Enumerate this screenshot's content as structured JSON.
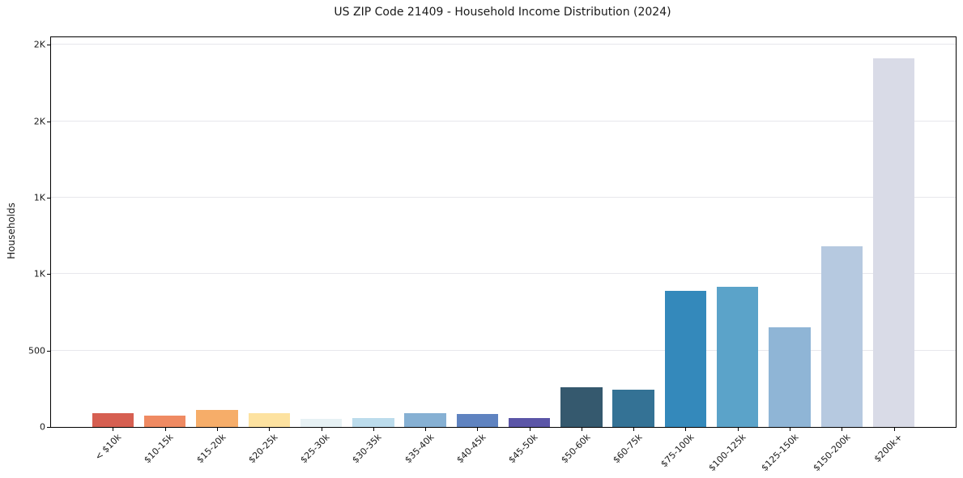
{
  "figure": {
    "background": "#ffffff",
    "axis_color": "#000000",
    "grid_color": "#e7e7ec",
    "text_color": "#1a1a1a"
  },
  "chart_data": {
    "type": "bar",
    "title": "US ZIP Code 21409 - Household Income Distribution (2024)",
    "xlabel": "",
    "ylabel": "Households",
    "categories": [
      "< $10k",
      "$10-15k",
      "$15-20k",
      "$20-25k",
      "$25-30k",
      "$30-35k",
      "$35-40k",
      "$40-45k",
      "$45-50k",
      "$50-60k",
      "$60-75k",
      "$75-100k",
      "$100-125k",
      "$125-150k",
      "$150-200k",
      "$200k+"
    ],
    "values": [
      90,
      73,
      112,
      92,
      55,
      60,
      91,
      84,
      56,
      262,
      243,
      890,
      917,
      653,
      1180,
      2410
    ],
    "bar_colors": [
      "#d65f51",
      "#ef8a62",
      "#f6ad69",
      "#fde2a0",
      "#e7f1f4",
      "#bcdcec",
      "#86b0d3",
      "#5f83c0",
      "#5b55a7",
      "#35596e",
      "#347295",
      "#3489bb",
      "#5ba3c9",
      "#8fb5d6",
      "#b6c9e0",
      "#d9dbe7"
    ],
    "ylim": [
      0,
      2550
    ],
    "yticks": [
      {
        "value": 0,
        "label": "0"
      },
      {
        "value": 500,
        "label": "500"
      },
      {
        "value": 1000,
        "label": "1K"
      },
      {
        "value": 1500,
        "label": "1K"
      },
      {
        "value": 2000,
        "label": "2K"
      },
      {
        "value": 2500,
        "label": "2K"
      }
    ],
    "grid": "horizontal",
    "legend_position": "none",
    "xtick_rotation_deg": 45
  }
}
